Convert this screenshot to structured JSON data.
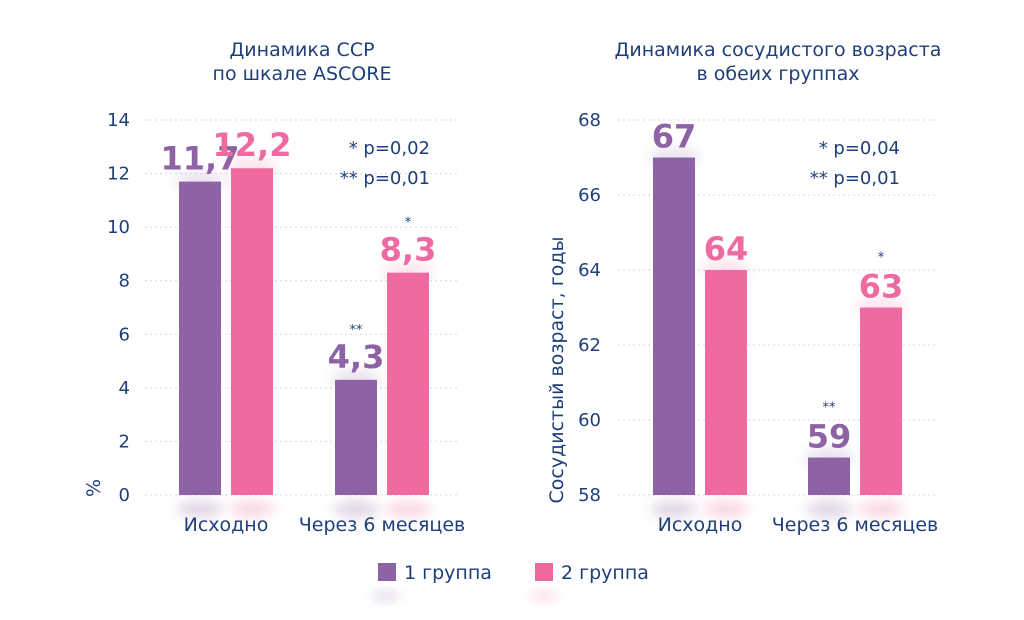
{
  "chart_data": [
    {
      "type": "bar",
      "title": [
        "Динамика ССР",
        "по шкале ASCORE"
      ],
      "ylabel": "%",
      "xlabel": "",
      "ylim": [
        0,
        14
      ],
      "yticks": [
        "0",
        "2",
        "4",
        "6",
        "8",
        "10",
        "12",
        "14"
      ],
      "ytick_values": [
        0,
        2,
        4,
        6,
        8,
        10,
        12,
        14
      ],
      "categories": [
        "Исходно",
        "Через 6 месяцев"
      ],
      "series": [
        {
          "name": "1 группа",
          "color": "#8e63a6",
          "values": [
            11.7,
            4.3
          ],
          "labels": [
            "11,7",
            "4,3"
          ],
          "marks": [
            "",
            "**"
          ]
        },
        {
          "name": "2 группа",
          "color": "#ef6aa1",
          "values": [
            12.2,
            8.3
          ],
          "labels": [
            "12,2",
            "8,3"
          ],
          "marks": [
            "",
            "*"
          ]
        }
      ],
      "annotations": [
        "* p=0,02",
        "** p=0,01"
      ],
      "grid": true
    },
    {
      "type": "bar",
      "title": [
        "Динамика сосудистого возраста",
        "в обеих группах"
      ],
      "ylabel": "Сосудистый возраст, годы",
      "xlabel": "",
      "ylim": [
        58,
        68
      ],
      "yticks": [
        "58",
        "60",
        "62",
        "64",
        "66",
        "68"
      ],
      "ytick_values": [
        58,
        60,
        62,
        64,
        66,
        68
      ],
      "categories": [
        "Исходно",
        "Через 6 месяцев"
      ],
      "series": [
        {
          "name": "1 группа",
          "color": "#8e63a6",
          "values": [
            67,
            59
          ],
          "labels": [
            "67",
            "59"
          ],
          "marks": [
            "",
            "**"
          ]
        },
        {
          "name": "2 группа",
          "color": "#ef6aa1",
          "values": [
            64,
            63
          ],
          "labels": [
            "64",
            "63"
          ],
          "marks": [
            "",
            "*"
          ]
        }
      ],
      "annotations": [
        "* p=0,04",
        "** p=0,01"
      ],
      "grid": true
    }
  ],
  "legend": {
    "placement": "bottom-center",
    "items": [
      {
        "label": "1 группа",
        "color": "#8e63a6"
      },
      {
        "label": "2 группа",
        "color": "#ef6aa1"
      }
    ]
  }
}
